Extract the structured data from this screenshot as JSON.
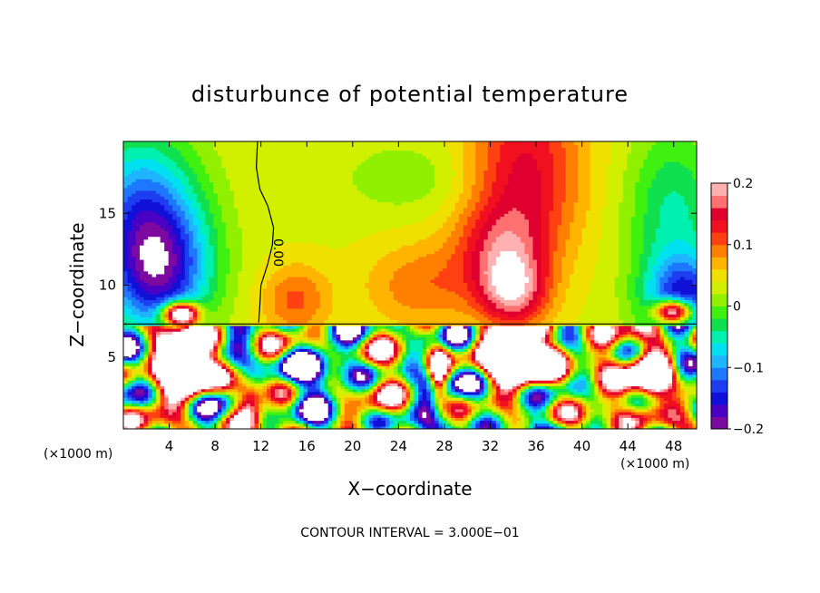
{
  "chart_data": {
    "type": "heatmap",
    "title": "disturbunce of potential temperature",
    "xlabel": "X−coordinate",
    "ylabel": "Z−coordinate",
    "x_unit_left": "(×1000 m)",
    "x_unit_right": "(×1000 m)",
    "xlim": [
      0,
      50
    ],
    "ylim": [
      0,
      20
    ],
    "x_ticks": [
      4,
      8,
      12,
      16,
      20,
      24,
      28,
      32,
      36,
      40,
      44,
      48
    ],
    "y_ticks": [
      5,
      10,
      15
    ],
    "colorbar": {
      "range": [
        -0.2,
        0.2
      ],
      "ticks": [
        {
          "value": 0.2,
          "label": "0.2"
        },
        {
          "value": 0.1,
          "label": "0.1"
        },
        {
          "value": 0,
          "label": "0"
        },
        {
          "value": -0.1,
          "label": "−0.1"
        },
        {
          "value": -0.2,
          "label": "−0.2"
        }
      ],
      "colors": [
        "#7c0aa0",
        "#4a00c4",
        "#1010d8",
        "#1e3cf0",
        "#1e78ff",
        "#1eb4ff",
        "#00e0f0",
        "#00f0b0",
        "#10e050",
        "#40f010",
        "#90f000",
        "#d0f000",
        "#f0e000",
        "#ffb400",
        "#ff8000",
        "#ff4010",
        "#f01020",
        "#e00030",
        "#ff7070",
        "#ffb0b0"
      ]
    },
    "contour_label": "0.00",
    "annotation": "CONTOUR INTERVAL = 3.000E−01",
    "interface_z": 7.3
  }
}
